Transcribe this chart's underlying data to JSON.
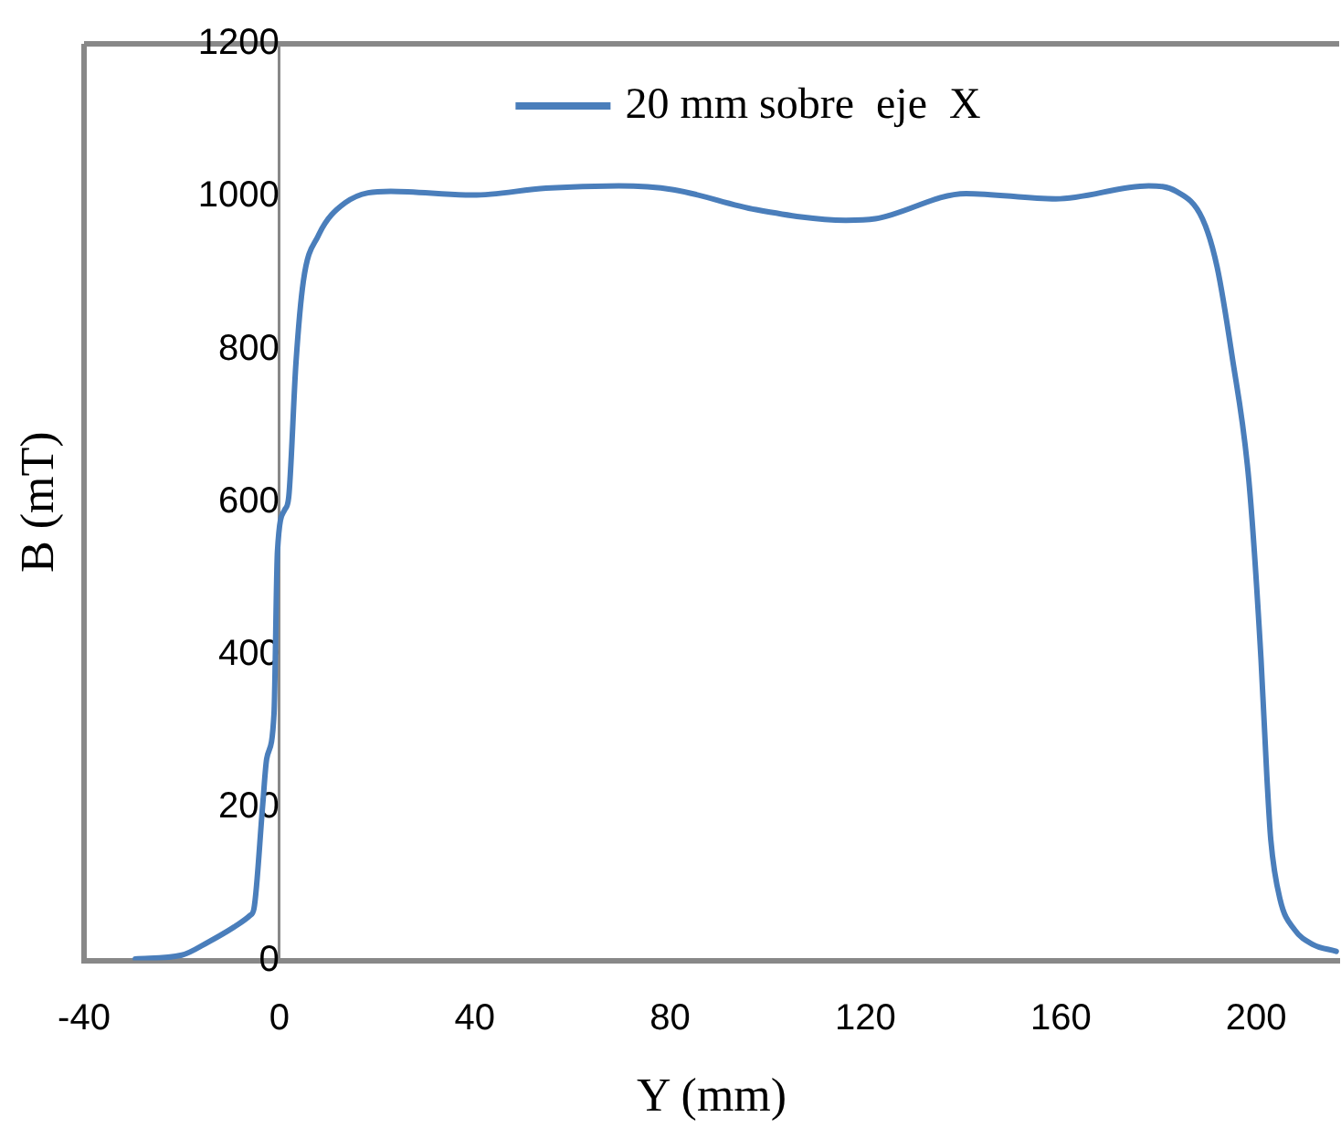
{
  "chart_data": {
    "type": "line",
    "xlabel": "Y (mm)",
    "ylabel": "B (mT)",
    "xlim": [
      -40,
      217
    ],
    "xticks": [
      -40,
      0,
      40,
      80,
      120,
      160,
      200
    ],
    "ylim": [
      0,
      1200
    ],
    "yticks": [
      0,
      200,
      400,
      600,
      800,
      1000,
      1200
    ],
    "grid": false,
    "legend": "top",
    "marker": "none",
    "line_style": "solid",
    "series": [
      {
        "name": "20 mm sobre  eje  X",
        "color": "#4a7ebb",
        "x": [
          -29.5,
          -20,
          -14.6,
          -9,
          -6,
          -5.2,
          -3.4,
          -2.6,
          -1.1,
          -0.4,
          1.1,
          1.9,
          3.4,
          4.9,
          7.9,
          13.5,
          22.8,
          39.6,
          54.6,
          69.5,
          80.7,
          97.6,
          116,
          122,
          140.6,
          159,
          178,
          183.6,
          189,
          192,
          195,
          198.5,
          201,
          202.2,
          203,
          204.9,
          207.9,
          211.6,
          216.4
        ],
        "values": [
          2,
          7,
          24,
          45,
          59,
          68,
          205,
          264,
          323,
          535,
          590,
          606,
          783,
          889,
          948,
          992,
          1007,
          1002,
          1011,
          1014,
          1009,
          983,
          969,
          971,
          1004,
          997,
          1014,
          1007,
          971,
          908,
          794,
          629,
          394,
          240,
          158,
          80,
          40,
          21,
          12
        ]
      }
    ]
  }
}
